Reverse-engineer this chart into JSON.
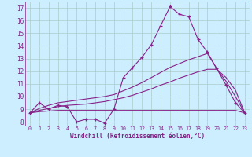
{
  "xlabel": "Windchill (Refroidissement éolien,°C)",
  "background_color": "#cceeff",
  "grid_color": "#aacccc",
  "line_color": "#882288",
  "ylim": [
    7.7,
    17.5
  ],
  "xlim": [
    -0.5,
    23.5
  ],
  "yticks": [
    8,
    9,
    10,
    11,
    12,
    13,
    14,
    15,
    16,
    17
  ],
  "xticks": [
    0,
    1,
    2,
    3,
    4,
    5,
    6,
    7,
    8,
    9,
    10,
    11,
    12,
    13,
    14,
    15,
    16,
    17,
    18,
    19,
    20,
    21,
    22,
    23
  ],
  "series1_x": [
    0,
    1,
    2,
    3,
    4,
    5,
    6,
    7,
    8,
    9,
    10,
    11,
    12,
    13,
    14,
    15,
    16,
    17,
    18,
    19,
    20,
    21,
    22,
    23
  ],
  "series1_y": [
    8.7,
    9.5,
    9.0,
    9.3,
    9.2,
    8.0,
    8.2,
    8.2,
    7.9,
    9.0,
    11.5,
    12.3,
    13.1,
    14.1,
    15.6,
    17.1,
    16.5,
    16.3,
    14.5,
    13.5,
    12.2,
    10.9,
    9.5,
    8.7
  ],
  "series2_x": [
    0,
    1,
    2,
    3,
    4,
    5,
    6,
    7,
    8,
    9,
    10,
    11,
    12,
    13,
    14,
    15,
    16,
    17,
    18,
    19,
    20,
    21,
    22,
    23
  ],
  "series2_y": [
    8.7,
    8.8,
    8.85,
    8.9,
    8.9,
    8.9,
    8.9,
    8.9,
    8.9,
    8.9,
    8.9,
    8.9,
    8.9,
    8.9,
    8.9,
    8.9,
    8.9,
    8.9,
    8.9,
    8.9,
    8.9,
    8.9,
    8.9,
    8.7
  ],
  "series3_x": [
    0,
    1,
    2,
    3,
    4,
    5,
    6,
    7,
    8,
    9,
    10,
    11,
    12,
    13,
    14,
    15,
    16,
    17,
    18,
    19,
    20,
    21,
    22,
    23
  ],
  "series3_y": [
    8.7,
    8.9,
    9.05,
    9.2,
    9.3,
    9.35,
    9.4,
    9.5,
    9.6,
    9.75,
    9.9,
    10.1,
    10.35,
    10.6,
    10.9,
    11.15,
    11.45,
    11.7,
    11.95,
    12.15,
    12.15,
    11.5,
    10.5,
    8.7
  ],
  "series4_x": [
    0,
    1,
    2,
    3,
    4,
    5,
    6,
    7,
    8,
    9,
    10,
    11,
    12,
    13,
    14,
    15,
    16,
    17,
    18,
    19,
    20,
    21,
    22,
    23
  ],
  "series4_y": [
    8.7,
    9.05,
    9.3,
    9.5,
    9.6,
    9.7,
    9.8,
    9.9,
    10.0,
    10.15,
    10.45,
    10.75,
    11.1,
    11.5,
    11.9,
    12.3,
    12.6,
    12.9,
    13.15,
    13.4,
    12.2,
    11.2,
    10.0,
    8.7
  ]
}
